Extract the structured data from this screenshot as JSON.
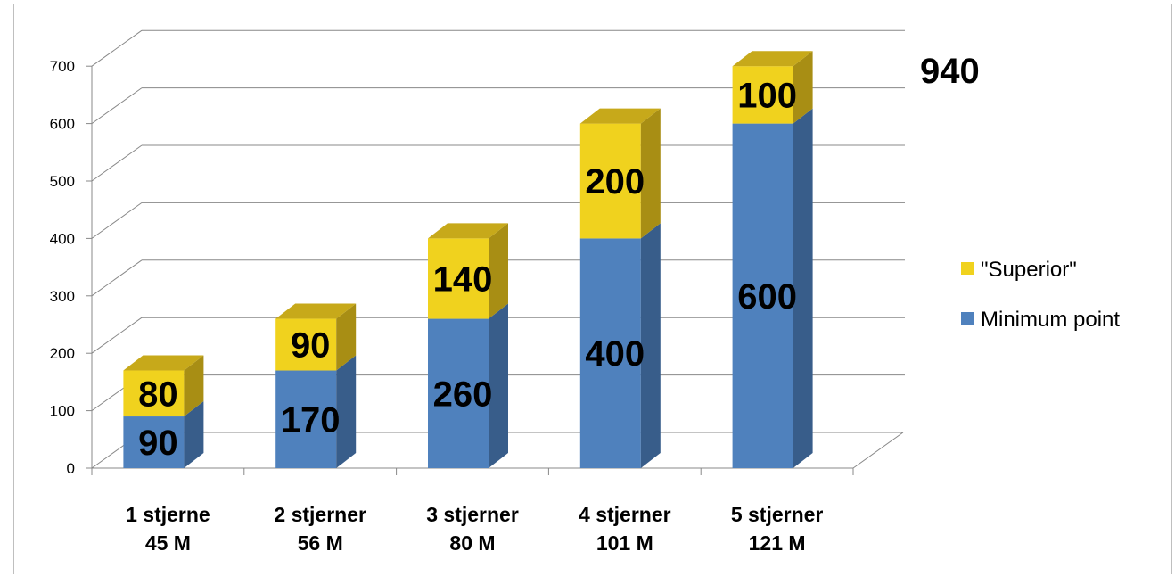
{
  "chart_data": {
    "type": "bar",
    "stacked": true,
    "three_d": true,
    "categories": [
      [
        "1 stjerne",
        "45 M"
      ],
      [
        "2 stjerner",
        "56 M"
      ],
      [
        "3 stjerner",
        "80 M"
      ],
      [
        "4 stjerner",
        "101 M"
      ],
      [
        "5 stjerner",
        "121 M"
      ]
    ],
    "series": [
      {
        "name": "Minimum point",
        "values": [
          90,
          170,
          260,
          400,
          600
        ],
        "colors": {
          "front": "#4f81bd",
          "side": "#385d8a",
          "top": "#6d95c9"
        }
      },
      {
        "name": "\"Superior\"",
        "values": [
          80,
          90,
          140,
          200,
          100
        ],
        "colors": {
          "front": "#f0d21e",
          "side": "#a88e14",
          "top": "#c7a91a"
        }
      }
    ],
    "ylim": [
      0,
      700
    ],
    "yticks": [
      "0",
      "100",
      "200",
      "300",
      "400",
      "500",
      "600",
      "700"
    ],
    "grid": true,
    "legend": {
      "placement": "right",
      "entries": [
        "\"Superior\"",
        "Minimum point"
      ]
    },
    "annotation": "940"
  }
}
